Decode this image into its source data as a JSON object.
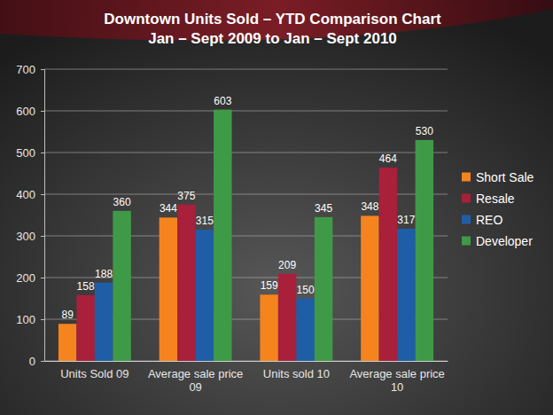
{
  "chart_data": {
    "type": "bar",
    "title": "Downtown Units Sold – YTD Comparison Chart",
    "subtitle": "Jan – Sept 2009 to Jan – Sept 2010",
    "categories": [
      "Units Sold 09",
      "Average sale price 09",
      "Units sold 10",
      "Average sale price 10"
    ],
    "series": [
      {
        "name": "Short Sale",
        "color": "#f5841f",
        "values": [
          89,
          344,
          159,
          348
        ]
      },
      {
        "name": "Resale",
        "color": "#a8203a",
        "values": [
          158,
          375,
          209,
          464
        ]
      },
      {
        "name": "REO",
        "color": "#1f5ea6",
        "values": [
          188,
          315,
          150,
          317
        ]
      },
      {
        "name": "Developer",
        "color": "#3f9a47",
        "values": [
          360,
          603,
          345,
          530
        ]
      }
    ],
    "ylim": [
      0,
      700
    ],
    "yticks": [
      0,
      100,
      200,
      300,
      400,
      500,
      600,
      700
    ],
    "grid": true,
    "legend": "right",
    "data_labels": true
  }
}
